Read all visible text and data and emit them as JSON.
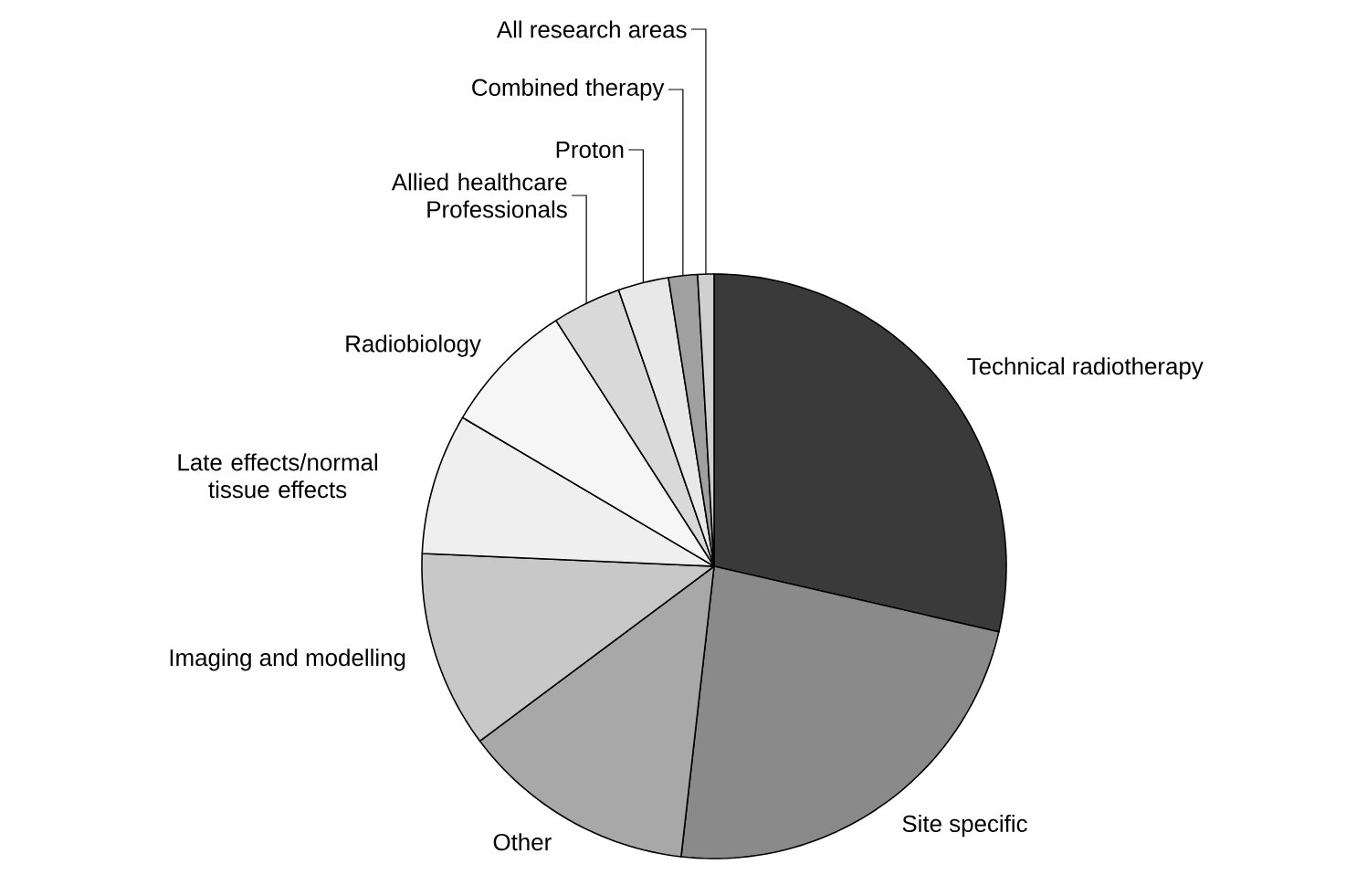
{
  "chart_data": {
    "type": "pie",
    "categories": [
      "Technical radiotherapy",
      "Site specific",
      "Other",
      "Imaging and modelling",
      "Late effects/normal tissue effects",
      "Radiobiology",
      "Allied healthcare Professionals",
      "Proton",
      "Combined therapy",
      "All research areas"
    ],
    "values": [
      28.6,
      23.2,
      13.0,
      10.9,
      7.8,
      7.4,
      3.8,
      2.8,
      1.6,
      0.9
    ],
    "colors": [
      "#3a3a3a",
      "#8a8a8a",
      "#a8a8a8",
      "#c8c8c8",
      "#efefef",
      "#f6f6f6",
      "#d9d9d9",
      "#e8e8e8",
      "#a0a0a0",
      "#d0d0d0"
    ]
  }
}
